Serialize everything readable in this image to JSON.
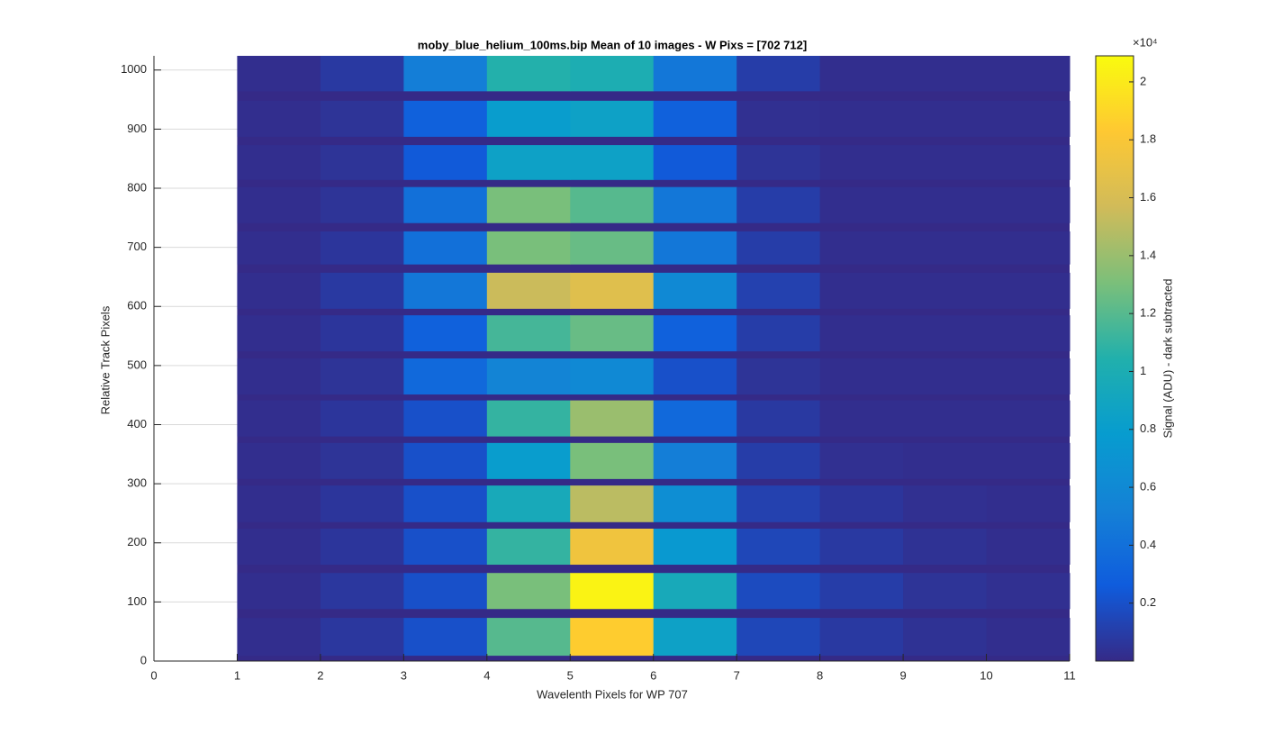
{
  "chart_data": {
    "type": "heatmap",
    "title": "moby_blue_helium_100ms.bip  Mean of 10 images - W Pixs = [702  712]",
    "xlabel": "Wavelenth Pixels for WP 707",
    "ylabel": "Relative Track Pixels",
    "colorbar_label": "Signal (ADU) - dark subtracted",
    "colorbar_exponent": "×10⁴",
    "colormap": "parula",
    "grid": true,
    "xlim": [
      0,
      11
    ],
    "xticks": [
      0,
      1,
      2,
      3,
      4,
      5,
      6,
      7,
      8,
      9,
      10,
      11
    ],
    "ylim": [
      0,
      1024
    ],
    "yticks": [
      0,
      100,
      200,
      300,
      400,
      500,
      600,
      700,
      800,
      900,
      1000
    ],
    "clim": [
      0,
      20900
    ],
    "cticks": [
      {
        "value": 2000,
        "label": "0.2"
      },
      {
        "value": 4000,
        "label": "0.4"
      },
      {
        "value": 6000,
        "label": "0.6"
      },
      {
        "value": 8000,
        "label": "0.8"
      },
      {
        "value": 10000,
        "label": "1"
      },
      {
        "value": 12000,
        "label": "1.2"
      },
      {
        "value": 14000,
        "label": "1.4"
      },
      {
        "value": 16000,
        "label": "1.6"
      },
      {
        "value": 18000,
        "label": "1.8"
      },
      {
        "value": 20000,
        "label": "2"
      }
    ],
    "x_edges": [
      1,
      2,
      3,
      4,
      5,
      6,
      7,
      8,
      9,
      10,
      11
    ],
    "y_bands": [
      [
        9,
        73
      ],
      [
        88,
        149
      ],
      [
        163,
        224
      ],
      [
        235,
        297
      ],
      [
        308,
        369
      ],
      [
        380,
        441
      ],
      [
        451,
        512
      ],
      [
        524,
        585
      ],
      [
        596,
        657
      ],
      [
        671,
        727
      ],
      [
        741,
        802
      ],
      [
        814,
        873
      ],
      [
        887,
        948
      ],
      [
        964,
        1024
      ]
    ],
    "values": [
      [
        200,
        700,
        2000,
        12000,
        18500,
        8500,
        1500,
        800,
        400,
        200
      ],
      [
        200,
        700,
        2000,
        13000,
        20500,
        9500,
        1700,
        1000,
        500,
        300
      ],
      [
        200,
        600,
        2000,
        11000,
        17500,
        7500,
        1500,
        800,
        400,
        200
      ],
      [
        200,
        600,
        2000,
        9500,
        15000,
        6500,
        1200,
        600,
        300,
        200
      ],
      [
        200,
        500,
        2000,
        8000,
        13000,
        5000,
        1000,
        300,
        200,
        200
      ],
      [
        200,
        600,
        2000,
        11000,
        14000,
        3500,
        800,
        200,
        200,
        200
      ],
      [
        200,
        500,
        3500,
        5500,
        6000,
        2000,
        500,
        200,
        200,
        200
      ],
      [
        200,
        600,
        3000,
        11500,
        12500,
        3000,
        1000,
        200,
        200,
        200
      ],
      [
        200,
        800,
        4500,
        15500,
        16500,
        6000,
        1200,
        200,
        200,
        200
      ],
      [
        200,
        600,
        4000,
        13000,
        12500,
        4500,
        1000,
        200,
        200,
        200
      ],
      [
        200,
        500,
        4000,
        13000,
        12000,
        4500,
        1000,
        200,
        200,
        200
      ],
      [
        200,
        500,
        2500,
        8500,
        8500,
        2500,
        500,
        200,
        200,
        200
      ],
      [
        200,
        500,
        3000,
        8000,
        8500,
        3000,
        300,
        200,
        200,
        200
      ],
      [
        200,
        800,
        5000,
        10500,
        10000,
        4500,
        1000,
        200,
        200,
        200
      ]
    ]
  }
}
